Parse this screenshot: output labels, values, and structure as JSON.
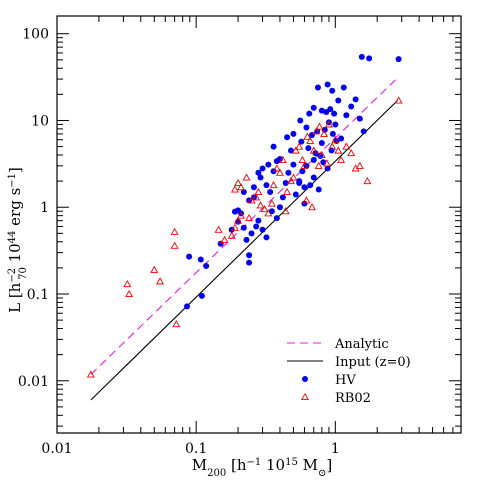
{
  "chart_data": {
    "type": "scatter",
    "xlabel": {
      "base": "M",
      "sub": "200",
      "text": " [h",
      "sup1": "−1",
      "text2": " 10",
      "sup2": "15",
      "text3": " M",
      "sub2": "⊙",
      "text4": "]"
    },
    "ylabel": {
      "text": "L [h",
      "sup": "−2",
      "sub": "70",
      "text2": " 10",
      "sup2": "44",
      "text3": " erg s",
      "sup3": "−1",
      "text4": "]"
    },
    "x_scale": "log",
    "y_scale": "log",
    "xlim": [
      0.01,
      8
    ],
    "ylim": [
      0.0025,
      160
    ],
    "x_ticks": [
      {
        "v": 0.01,
        "label": "0.01"
      },
      {
        "v": 0.1,
        "label": "0.1"
      },
      {
        "v": 1,
        "label": "1"
      }
    ],
    "y_ticks": [
      {
        "v": 0.01,
        "label": "0.01"
      },
      {
        "v": 0.1,
        "label": "0.1"
      },
      {
        "v": 1,
        "label": "1"
      },
      {
        "v": 10,
        "label": "10"
      },
      {
        "v": 100,
        "label": "100"
      }
    ],
    "legend_position": "bottom-right",
    "legend": [
      {
        "label": "Analytic",
        "style": "dashed-line",
        "color": "#e020e0"
      },
      {
        "label": "Input (z=0)",
        "style": "solid-line",
        "color": "#000000"
      },
      {
        "label": "HV",
        "style": "filled-circle",
        "color": "#0000ee"
      },
      {
        "label": "RB02",
        "style": "open-triangle",
        "color": "#ee0000"
      }
    ],
    "lines": [
      {
        "name": "Analytic",
        "color": "#e020e0",
        "dash": "8,5",
        "x": [
          0.0175,
          2.8
        ],
        "y": [
          0.0118,
          31
        ]
      },
      {
        "name": "Input (z=0)",
        "color": "#000000",
        "dash": "",
        "x": [
          0.0175,
          2.8
        ],
        "y": [
          0.006,
          17
        ]
      }
    ],
    "series": [
      {
        "name": "HV",
        "marker": "filled-circle",
        "color": "#0000ee",
        "points": [
          [
            0.086,
            0.072
          ],
          [
            0.11,
            0.095
          ],
          [
            0.089,
            0.27
          ],
          [
            0.108,
            0.25
          ],
          [
            0.118,
            0.21
          ],
          [
            0.15,
            0.38
          ],
          [
            0.18,
            0.55
          ],
          [
            0.19,
            0.89
          ],
          [
            0.2,
            0.68
          ],
          [
            0.21,
            0.85
          ],
          [
            0.23,
            0.42
          ],
          [
            0.24,
            0.28
          ],
          [
            0.24,
            0.23
          ],
          [
            0.22,
            0.58
          ],
          [
            0.25,
            0.5
          ],
          [
            0.27,
            0.6
          ],
          [
            0.28,
            0.7
          ],
          [
            0.3,
            0.55
          ],
          [
            0.32,
            0.45
          ],
          [
            0.35,
            0.9
          ],
          [
            0.38,
            0.75
          ],
          [
            0.22,
            1.5
          ],
          [
            0.24,
            1.2
          ],
          [
            0.26,
            1.3
          ],
          [
            0.29,
            2.2
          ],
          [
            0.3,
            2.8
          ],
          [
            0.32,
            1.8
          ],
          [
            0.34,
            1.5
          ],
          [
            0.36,
            2.6
          ],
          [
            0.38,
            3.4
          ],
          [
            0.4,
            1.0
          ],
          [
            0.42,
            1.3
          ],
          [
            0.44,
            1.9
          ],
          [
            0.46,
            2.5
          ],
          [
            0.48,
            4.5
          ],
          [
            0.5,
            3.1
          ],
          [
            0.52,
            1.4
          ],
          [
            0.55,
            2.0
          ],
          [
            0.57,
            5.7
          ],
          [
            0.58,
            2.6
          ],
          [
            0.6,
            1.1
          ],
          [
            0.62,
            3.0
          ],
          [
            0.64,
            4.8
          ],
          [
            0.66,
            1.8
          ],
          [
            0.68,
            6.8
          ],
          [
            0.7,
            2.2
          ],
          [
            0.72,
            4.2
          ],
          [
            0.74,
            7.5
          ],
          [
            0.76,
            1.6
          ],
          [
            0.78,
            3.9
          ],
          [
            0.8,
            5.5
          ],
          [
            0.82,
            3.3
          ],
          [
            0.84,
            7.8
          ],
          [
            0.86,
            12.5
          ],
          [
            0.88,
            2.8
          ],
          [
            0.9,
            9.5
          ],
          [
            0.92,
            13.5
          ],
          [
            0.94,
            4.5
          ],
          [
            0.96,
            7.0
          ],
          [
            0.98,
            12.0
          ],
          [
            1.0,
            9.0
          ],
          [
            1.05,
            17.0
          ],
          [
            1.1,
            6.2
          ],
          [
            1.15,
            24.0
          ],
          [
            1.2,
            11.5
          ],
          [
            1.3,
            14.5
          ],
          [
            1.4,
            17.5
          ],
          [
            1.5,
            10.5
          ],
          [
            1.6,
            7.5
          ],
          [
            1.55,
            54.0
          ],
          [
            1.75,
            52.0
          ],
          [
            2.85,
            51.0
          ],
          [
            0.33,
            3.1
          ],
          [
            0.5,
            7.0
          ],
          [
            0.56,
            10.0
          ],
          [
            0.62,
            8.3
          ],
          [
            0.7,
            3.5
          ],
          [
            0.75,
            24.0
          ],
          [
            0.8,
            13.0
          ],
          [
            0.88,
            26.0
          ],
          [
            0.95,
            22.0
          ],
          [
            1.02,
            5.8
          ],
          [
            0.65,
            12.0
          ],
          [
            0.45,
            6.4
          ],
          [
            0.4,
            3.6
          ],
          [
            0.36,
            5.0
          ],
          [
            0.28,
            2.5
          ],
          [
            0.26,
            1.7
          ],
          [
            0.2,
            0.92
          ],
          [
            0.55,
            1.9
          ],
          [
            0.6,
            1.7
          ],
          [
            0.7,
            14.0
          ]
        ]
      },
      {
        "name": "RB02",
        "marker": "open-triangle",
        "color": "#ee0000",
        "points": [
          [
            0.0175,
            0.0118
          ],
          [
            0.032,
            0.13
          ],
          [
            0.033,
            0.1
          ],
          [
            0.05,
            0.19
          ],
          [
            0.055,
            0.14
          ],
          [
            0.07,
            0.52
          ],
          [
            0.07,
            0.36
          ],
          [
            0.072,
            0.045
          ],
          [
            0.145,
            0.55
          ],
          [
            0.16,
            0.42
          ],
          [
            0.18,
            0.47
          ],
          [
            0.19,
            0.58
          ],
          [
            0.2,
            0.7
          ],
          [
            0.21,
            0.8
          ],
          [
            0.19,
            1.6
          ],
          [
            0.2,
            1.9
          ],
          [
            0.21,
            1.7
          ],
          [
            0.23,
            2.2
          ],
          [
            0.25,
            1.2
          ],
          [
            0.27,
            1.3
          ],
          [
            0.29,
            1.05
          ],
          [
            0.31,
            0.95
          ],
          [
            0.33,
            0.85
          ],
          [
            0.35,
            1.1
          ],
          [
            0.38,
            2.8
          ],
          [
            0.4,
            2.5
          ],
          [
            0.42,
            3.5
          ],
          [
            0.45,
            1.5
          ],
          [
            0.48,
            2.0
          ],
          [
            0.52,
            4.5
          ],
          [
            0.55,
            5.0
          ],
          [
            0.58,
            3.5
          ],
          [
            0.6,
            3.0
          ],
          [
            0.63,
            6.5
          ],
          [
            0.66,
            5.8
          ],
          [
            0.7,
            4.5
          ],
          [
            0.73,
            7.5
          ],
          [
            0.77,
            8.5
          ],
          [
            0.8,
            4.0
          ],
          [
            0.83,
            7.0
          ],
          [
            0.87,
            3.2
          ],
          [
            0.9,
            9.0
          ],
          [
            0.95,
            5.0
          ],
          [
            1.0,
            6.0
          ],
          [
            1.05,
            4.5
          ],
          [
            1.1,
            3.5
          ],
          [
            1.2,
            5.0
          ],
          [
            1.3,
            4.2
          ],
          [
            1.4,
            2.8
          ],
          [
            1.5,
            3.0
          ],
          [
            1.7,
            2.0
          ],
          [
            2.85,
            17.0
          ],
          [
            0.24,
            0.75
          ],
          [
            0.28,
            1.5
          ],
          [
            0.36,
            1.8
          ],
          [
            0.5,
            2.2
          ],
          [
            0.62,
            1.2
          ],
          [
            0.68,
            1.0
          ],
          [
            0.76,
            3.0
          ],
          [
            0.44,
            0.9
          ]
        ]
      }
    ]
  }
}
